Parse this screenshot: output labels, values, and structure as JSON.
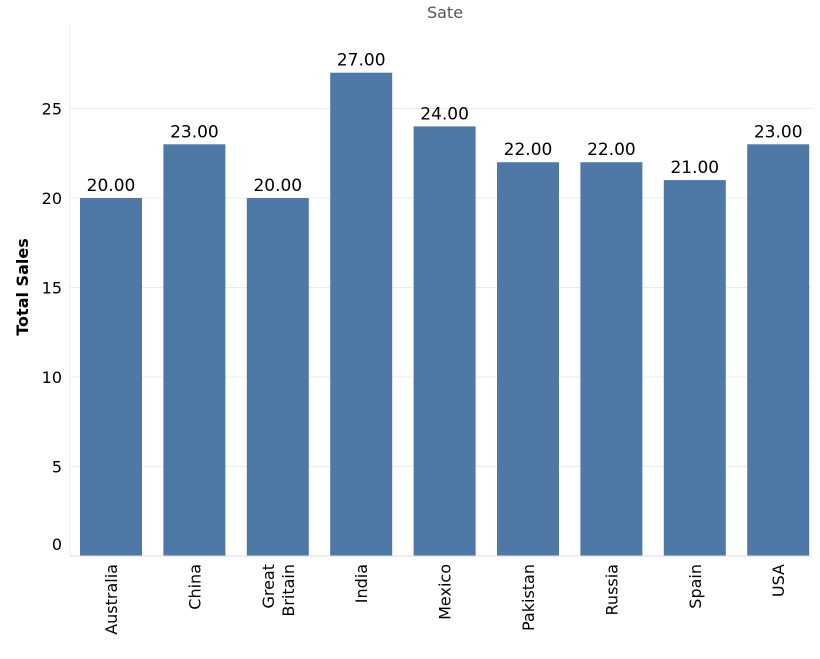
{
  "chart_data": {
    "type": "bar",
    "title": "Sate",
    "xlabel": "",
    "ylabel": "Total Sales",
    "categories": [
      [
        "Australia"
      ],
      [
        "China"
      ],
      [
        "Great",
        "Britain"
      ],
      [
        "India"
      ],
      [
        "Mexico"
      ],
      [
        "Pakistan"
      ],
      [
        "Russia"
      ],
      [
        "Spain"
      ],
      [
        "USA"
      ]
    ],
    "values": [
      20,
      23,
      20,
      27,
      24,
      22,
      22,
      21,
      23
    ],
    "value_labels": [
      "20.00",
      "23.00",
      "20.00",
      "27.00",
      "24.00",
      "22.00",
      "22.00",
      "21.00",
      "23.00"
    ],
    "yticks": [
      0,
      5,
      10,
      15,
      20,
      25
    ],
    "ylim": [
      0,
      29
    ],
    "grid": true,
    "legend": "none",
    "bar_color": "#4e79a7"
  }
}
